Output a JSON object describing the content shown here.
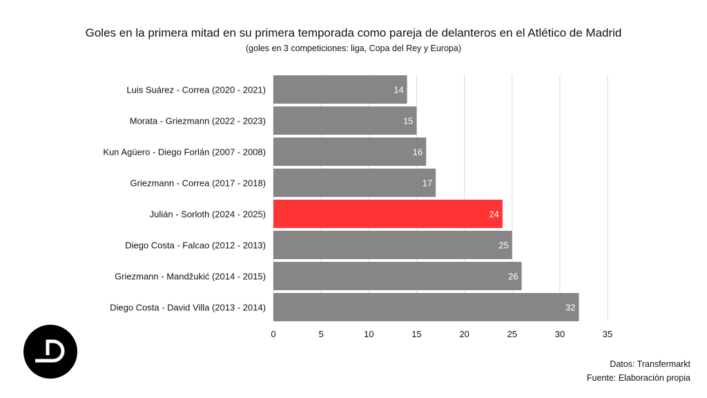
{
  "chart_data": {
    "type": "bar",
    "orientation": "horizontal",
    "title": "Goles en la primera mitad en su primera temporada como pareja de delanteros en el Atlético de Madrid",
    "subtitle": "(goles en 3 competiciones: liga, Copa del Rey y Europa)",
    "categories": [
      "Luis Suárez - Correa (2020 - 2021)",
      "Morata - Griezmann (2022 - 2023)",
      "Kun Agüero - Diego Forlán (2007 - 2008)",
      "Griezmann - Correa (2017 - 2018)",
      "Julián - Sorloth (2024 - 2025)",
      "Diego Costa - Falcao (2012 - 2013)",
      "Griezmann - Mandžukić (2014 - 2015)",
      "Diego Costa - David Villa (2013 - 2014)"
    ],
    "values": [
      14,
      15,
      16,
      17,
      24,
      25,
      26,
      32
    ],
    "highlight_index": 4,
    "xlim": [
      0,
      35
    ],
    "xticks": [
      0,
      5,
      10,
      15,
      20,
      25,
      30,
      35
    ],
    "grid": "vertical",
    "xlabel": "",
    "ylabel": "",
    "colors": {
      "default": "#878585",
      "highlight": "#ff3434"
    }
  },
  "footer": {
    "source": "Datos: Transfermarkt",
    "credit": "Fuente: Elaboración propia"
  },
  "logo": {
    "text": "D"
  }
}
